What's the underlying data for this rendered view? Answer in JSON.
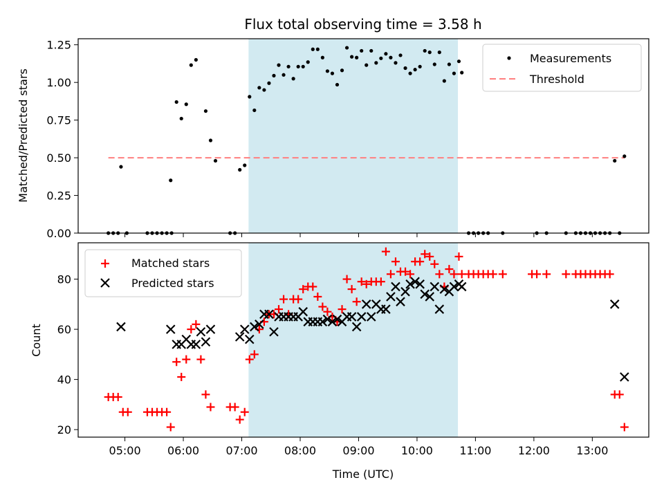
{
  "chart_data": [
    {
      "type": "scatter",
      "title": "Flux total observing time = 3.58 h",
      "ylabel": "Matched/Predicted stars",
      "ylim": [
        0.0,
        1.29
      ],
      "yticks": [
        "0.00",
        "0.25",
        "0.50",
        "0.75",
        "1.00",
        "1.25"
      ],
      "legend_position": "upper-right",
      "shaded_interval": {
        "start": "07:07",
        "end": "10:42",
        "color": "#add8e6"
      },
      "series": [
        {
          "name": "Measurements",
          "marker": "dot",
          "color": "#000000",
          "points": [
            [
              "04:43",
              0
            ],
            [
              "04:48",
              0
            ],
            [
              "04:53",
              0
            ],
            [
              "04:56",
              0.44
            ],
            [
              "05:02",
              0
            ],
            [
              "05:23",
              0
            ],
            [
              "05:28",
              0
            ],
            [
              "05:33",
              0
            ],
            [
              "05:38",
              0
            ],
            [
              "05:43",
              0
            ],
            [
              "05:48",
              0
            ],
            [
              "05:47",
              0.35
            ],
            [
              "05:53",
              0.87
            ],
            [
              "05:58",
              0.76
            ],
            [
              "06:03",
              0.855
            ],
            [
              "06:08",
              1.115
            ],
            [
              "06:13",
              1.15
            ],
            [
              "06:23",
              0.81
            ],
            [
              "06:28",
              0.615
            ],
            [
              "06:33",
              0.48
            ],
            [
              "06:48",
              0
            ],
            [
              "06:53",
              0
            ],
            [
              "06:58",
              0.42
            ],
            [
              "07:03",
              0.45
            ],
            [
              "07:08",
              0.905
            ],
            [
              "07:13",
              0.815
            ],
            [
              "07:18",
              0.965
            ],
            [
              "07:23",
              0.95
            ],
            [
              "07:28",
              0.995
            ],
            [
              "07:33",
              1.045
            ],
            [
              "07:38",
              1.115
            ],
            [
              "07:43",
              1.05
            ],
            [
              "07:48",
              1.105
            ],
            [
              "07:53",
              1.025
            ],
            [
              "07:58",
              1.105
            ],
            [
              "08:03",
              1.105
            ],
            [
              "08:08",
              1.135
            ],
            [
              "08:13",
              1.22
            ],
            [
              "08:18",
              1.22
            ],
            [
              "08:23",
              1.165
            ],
            [
              "08:28",
              1.075
            ],
            [
              "08:33",
              1.06
            ],
            [
              "08:38",
              0.985
            ],
            [
              "08:43",
              1.08
            ],
            [
              "08:48",
              1.23
            ],
            [
              "08:53",
              1.17
            ],
            [
              "08:58",
              1.165
            ],
            [
              "09:03",
              1.21
            ],
            [
              "09:08",
              1.115
            ],
            [
              "09:13",
              1.21
            ],
            [
              "09:18",
              1.13
            ],
            [
              "09:23",
              1.16
            ],
            [
              "09:28",
              1.19
            ],
            [
              "09:33",
              1.165
            ],
            [
              "09:38",
              1.13
            ],
            [
              "09:43",
              1.18
            ],
            [
              "09:48",
              1.095
            ],
            [
              "09:53",
              1.06
            ],
            [
              "09:58",
              1.085
            ],
            [
              "10:03",
              1.105
            ],
            [
              "10:08",
              1.21
            ],
            [
              "10:13",
              1.2
            ],
            [
              "10:18",
              1.12
            ],
            [
              "10:23",
              1.2
            ],
            [
              "10:28",
              1.01
            ],
            [
              "10:33",
              1.12
            ],
            [
              "10:38",
              1.06
            ],
            [
              "10:43",
              1.14
            ],
            [
              "10:46",
              1.065
            ],
            [
              "10:53",
              0
            ],
            [
              "10:58",
              0
            ],
            [
              "11:03",
              0
            ],
            [
              "11:08",
              0
            ],
            [
              "11:13",
              0
            ],
            [
              "11:28",
              0
            ],
            [
              "12:03",
              0
            ],
            [
              "12:13",
              0
            ],
            [
              "12:33",
              0
            ],
            [
              "12:43",
              0
            ],
            [
              "12:48",
              0
            ],
            [
              "12:53",
              0
            ],
            [
              "12:58",
              0
            ],
            [
              "13:03",
              0
            ],
            [
              "13:08",
              0
            ],
            [
              "13:13",
              0
            ],
            [
              "13:18",
              0
            ],
            [
              "13:23",
              0.48
            ],
            [
              "13:28",
              0
            ],
            [
              "13:33",
              0.51
            ]
          ]
        },
        {
          "name": "Threshold",
          "marker": "dashed-line",
          "color": "#ff7f7f",
          "points": [
            [
              "04:43",
              0.5
            ],
            [
              "13:33",
              0.5
            ]
          ]
        }
      ]
    },
    {
      "type": "scatter",
      "xlabel": "Time (UTC)",
      "ylabel": "Count",
      "ylim": [
        17,
        94.5
      ],
      "yticks": [
        "20",
        "40",
        "60",
        "80"
      ],
      "xlim": [
        "04:12",
        "13:58"
      ],
      "xticks": [
        "05:00",
        "06:00",
        "07:00",
        "08:00",
        "09:00",
        "10:00",
        "11:00",
        "12:00",
        "13:00"
      ],
      "legend_position": "upper-left",
      "shaded_interval": {
        "start": "07:07",
        "end": "10:42",
        "color": "#add8e6"
      },
      "series": [
        {
          "name": "Matched stars",
          "marker": "plus",
          "color": "#ff0000",
          "points": [
            [
              "04:43",
              33
            ],
            [
              "04:48",
              33
            ],
            [
              "04:53",
              33
            ],
            [
              "04:58",
              27
            ],
            [
              "05:03",
              27
            ],
            [
              "05:23",
              27
            ],
            [
              "05:28",
              27
            ],
            [
              "05:33",
              27
            ],
            [
              "05:38",
              27
            ],
            [
              "05:43",
              27
            ],
            [
              "05:47",
              21
            ],
            [
              "05:53",
              47
            ],
            [
              "05:58",
              41
            ],
            [
              "06:03",
              48
            ],
            [
              "06:08",
              60
            ],
            [
              "06:13",
              62
            ],
            [
              "06:18",
              48
            ],
            [
              "06:23",
              34
            ],
            [
              "06:28",
              29
            ],
            [
              "06:48",
              29
            ],
            [
              "06:53",
              29
            ],
            [
              "06:58",
              24
            ],
            [
              "07:03",
              27
            ],
            [
              "07:08",
              48
            ],
            [
              "07:13",
              50
            ],
            [
              "07:18",
              60
            ],
            [
              "07:23",
              63
            ],
            [
              "07:28",
              66
            ],
            [
              "07:33",
              66
            ],
            [
              "07:38",
              68
            ],
            [
              "07:43",
              72
            ],
            [
              "07:48",
              66
            ],
            [
              "07:53",
              72
            ],
            [
              "07:58",
              72
            ],
            [
              "08:03",
              76
            ],
            [
              "08:08",
              77
            ],
            [
              "08:13",
              77
            ],
            [
              "08:18",
              73
            ],
            [
              "08:23",
              69
            ],
            [
              "08:28",
              67
            ],
            [
              "08:33",
              65
            ],
            [
              "08:38",
              63
            ],
            [
              "08:43",
              68
            ],
            [
              "08:48",
              80
            ],
            [
              "08:53",
              76
            ],
            [
              "08:58",
              71
            ],
            [
              "09:03",
              79
            ],
            [
              "09:08",
              78
            ],
            [
              "09:13",
              79
            ],
            [
              "09:18",
              79
            ],
            [
              "09:23",
              79
            ],
            [
              "09:28",
              91
            ],
            [
              "09:33",
              82
            ],
            [
              "09:38",
              87
            ],
            [
              "09:43",
              83
            ],
            [
              "09:48",
              83
            ],
            [
              "09:53",
              82
            ],
            [
              "09:58",
              87
            ],
            [
              "10:03",
              87
            ],
            [
              "10:08",
              90
            ],
            [
              "10:13",
              89
            ],
            [
              "10:18",
              86
            ],
            [
              "10:23",
              82
            ],
            [
              "10:28",
              77
            ],
            [
              "10:33",
              84
            ],
            [
              "10:38",
              82
            ],
            [
              "10:43",
              89
            ],
            [
              "10:46",
              82
            ],
            [
              "10:53",
              82
            ],
            [
              "10:58",
              82
            ],
            [
              "11:03",
              82
            ],
            [
              "11:08",
              82
            ],
            [
              "11:13",
              82
            ],
            [
              "11:18",
              82
            ],
            [
              "11:28",
              82
            ],
            [
              "11:58",
              82
            ],
            [
              "12:03",
              82
            ],
            [
              "12:13",
              82
            ],
            [
              "12:33",
              82
            ],
            [
              "12:43",
              82
            ],
            [
              "12:48",
              82
            ],
            [
              "12:53",
              82
            ],
            [
              "12:58",
              82
            ],
            [
              "13:03",
              82
            ],
            [
              "13:08",
              82
            ],
            [
              "13:13",
              82
            ],
            [
              "13:18",
              82
            ],
            [
              "13:23",
              34
            ],
            [
              "13:28",
              34
            ],
            [
              "13:33",
              21
            ]
          ]
        },
        {
          "name": "Predicted stars",
          "marker": "x",
          "color": "#000000",
          "points": [
            [
              "04:56",
              61
            ],
            [
              "05:47",
              60
            ],
            [
              "05:53",
              54
            ],
            [
              "05:58",
              54
            ],
            [
              "06:03",
              56
            ],
            [
              "06:08",
              54
            ],
            [
              "06:13",
              54
            ],
            [
              "06:18",
              59
            ],
            [
              "06:23",
              55
            ],
            [
              "06:28",
              60
            ],
            [
              "06:58",
              57
            ],
            [
              "07:03",
              60
            ],
            [
              "07:08",
              56
            ],
            [
              "07:13",
              61
            ],
            [
              "07:18",
              62
            ],
            [
              "07:23",
              66
            ],
            [
              "07:28",
              66
            ],
            [
              "07:33",
              59
            ],
            [
              "07:38",
              65
            ],
            [
              "07:43",
              65
            ],
            [
              "07:48",
              65
            ],
            [
              "07:53",
              65
            ],
            [
              "07:58",
              65
            ],
            [
              "08:03",
              67
            ],
            [
              "08:08",
              63
            ],
            [
              "08:13",
              63
            ],
            [
              "08:18",
              63
            ],
            [
              "08:23",
              63
            ],
            [
              "08:28",
              64
            ],
            [
              "08:33",
              63
            ],
            [
              "08:38",
              64
            ],
            [
              "08:43",
              63
            ],
            [
              "08:48",
              65
            ],
            [
              "08:53",
              65
            ],
            [
              "08:58",
              61
            ],
            [
              "09:03",
              65
            ],
            [
              "09:08",
              70
            ],
            [
              "09:13",
              65
            ],
            [
              "09:18",
              70
            ],
            [
              "09:23",
              68
            ],
            [
              "09:28",
              68
            ],
            [
              "09:33",
              73
            ],
            [
              "09:38",
              77
            ],
            [
              "09:43",
              71
            ],
            [
              "09:48",
              75
            ],
            [
              "09:53",
              78
            ],
            [
              "09:58",
              79
            ],
            [
              "10:03",
              78
            ],
            [
              "10:08",
              74
            ],
            [
              "10:13",
              73
            ],
            [
              "10:18",
              77
            ],
            [
              "10:23",
              68
            ],
            [
              "10:28",
              76
            ],
            [
              "10:33",
              75
            ],
            [
              "10:38",
              77
            ],
            [
              "10:43",
              78
            ],
            [
              "10:46",
              77
            ],
            [
              "13:23",
              70
            ],
            [
              "13:33",
              41
            ]
          ]
        }
      ]
    }
  ]
}
